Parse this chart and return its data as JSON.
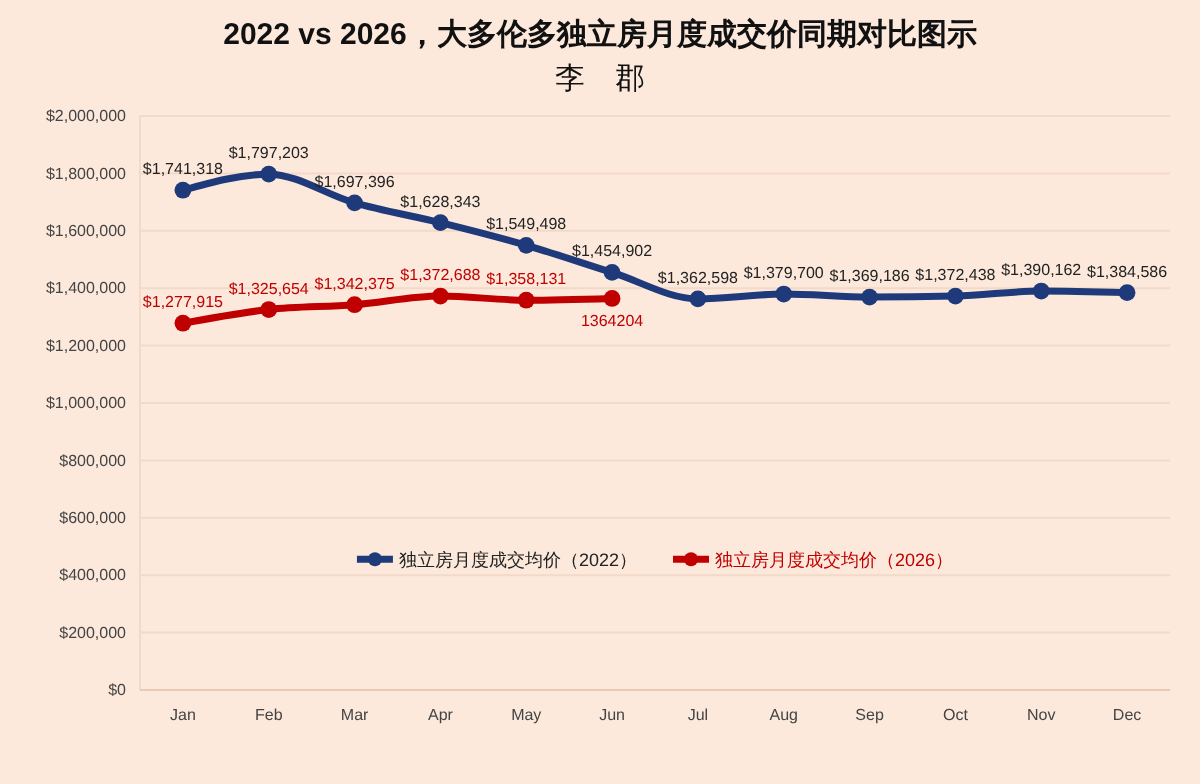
{
  "chart_data": {
    "type": "line",
    "title": "2022 vs 2026，大多伦多独立房月度成交价同期对比图示",
    "subtitle": "李　郡",
    "categories": [
      "Jan",
      "Feb",
      "Mar",
      "Apr",
      "May",
      "Jun",
      "Jul",
      "Aug",
      "Sep",
      "Oct",
      "Nov",
      "Dec"
    ],
    "series": [
      {
        "name": "独立房月度成交均价（2022）",
        "color": "#1f3a7a",
        "values": [
          1741318,
          1797203,
          1697396,
          1628343,
          1549498,
          1454902,
          1362598,
          1379700,
          1369186,
          1372438,
          1390162,
          1384586
        ],
        "value_labels": [
          "$1,741,318",
          "$1,797,203",
          "$1,697,396",
          "$1,628,343",
          "$1,549,498",
          "$1,454,902",
          "$1,362,598",
          "$1,379,700",
          "$1,369,186",
          "$1,372,438",
          "$1,390,162",
          "$1,384,586"
        ]
      },
      {
        "name": "独立房月度成交均价（2026）",
        "color": "#c00000",
        "values": [
          1277915,
          1325654,
          1342375,
          1372688,
          1358131,
          1364204,
          null,
          null,
          null,
          null,
          null,
          null
        ],
        "value_labels": [
          "$1,277,915",
          "$1,325,654",
          "$1,342,375",
          "$1,372,688",
          "$1,358,131",
          "1364204",
          null,
          null,
          null,
          null,
          null,
          null
        ]
      }
    ],
    "ylim": [
      0,
      2000000
    ],
    "yticks": [
      {
        "value": 0,
        "label": "$0"
      },
      {
        "value": 200000,
        "label": "$200,000"
      },
      {
        "value": 400000,
        "label": "$400,000"
      },
      {
        "value": 600000,
        "label": "$600,000"
      },
      {
        "value": 800000,
        "label": "$800,000"
      },
      {
        "value": 1000000,
        "label": "$1,000,000"
      },
      {
        "value": 1200000,
        "label": "$1,200,000"
      },
      {
        "value": 1400000,
        "label": "$1,400,000"
      },
      {
        "value": 1600000,
        "label": "$1,600,000"
      },
      {
        "value": 1800000,
        "label": "$1,800,000"
      },
      {
        "value": 2000000,
        "label": "$2,000,000"
      }
    ],
    "grid": "y",
    "legend": "bottom",
    "marker": "circle",
    "line_style": "solid"
  }
}
